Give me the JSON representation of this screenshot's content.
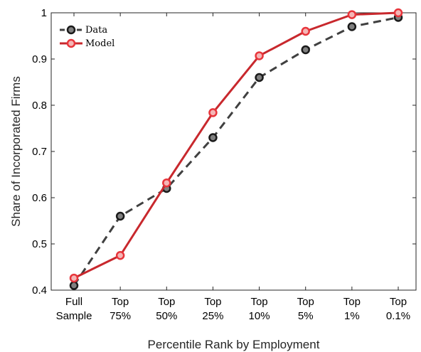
{
  "chart_data": {
    "type": "line",
    "title": "",
    "xlabel": "Percentile Rank by Employment",
    "ylabel": "Share of Incorporated Firms",
    "categories": [
      [
        "Full",
        "Sample"
      ],
      [
        "Top",
        "75%"
      ],
      [
        "Top",
        "50%"
      ],
      [
        "Top",
        "25%"
      ],
      [
        "Top",
        "10%"
      ],
      [
        "Top",
        "5%"
      ],
      [
        "Top",
        "1%"
      ],
      [
        "Top",
        "0.1%"
      ]
    ],
    "ylim": [
      0.4,
      1.0
    ],
    "yticks": [
      "0.4",
      "0.5",
      "0.6",
      "0.7",
      "0.8",
      "0.9",
      "1"
    ],
    "legend_position": "top-left",
    "grid": false,
    "series": [
      {
        "name": "Data",
        "style": "dashed",
        "line_color": "#404040",
        "marker_fill": "#808080",
        "marker_edge": "#1a1a1a",
        "values": [
          0.41,
          0.56,
          0.62,
          0.73,
          0.86,
          0.92,
          0.97,
          0.99
        ]
      },
      {
        "name": "Model",
        "style": "solid",
        "line_color": "#c8282d",
        "marker_fill": "#f4b6b6",
        "marker_edge": "#e8353b",
        "values": [
          0.426,
          0.475,
          0.632,
          0.784,
          0.907,
          0.96,
          0.996,
          1.0
        ]
      }
    ]
  }
}
